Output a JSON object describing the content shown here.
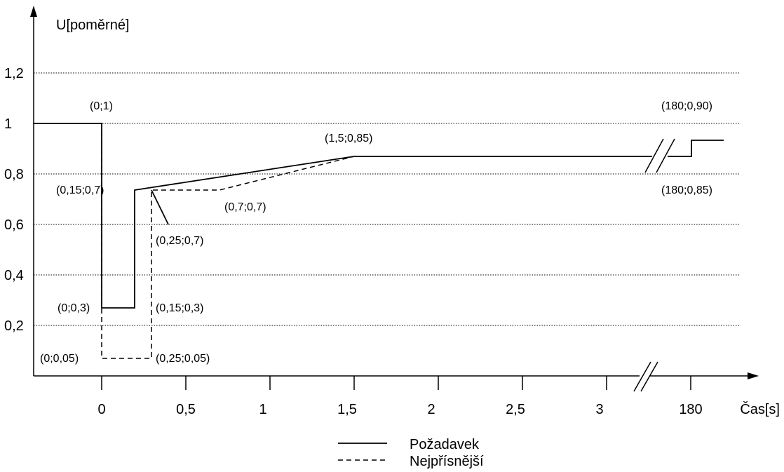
{
  "chart_data": {
    "type": "line",
    "ylabel": "U[poměrné]",
    "xlabel": "Čas[s]",
    "x_ticks": [
      "0",
      "0,5",
      "1",
      "1,5",
      "2",
      "2,5",
      "3",
      "180"
    ],
    "y_ticks": [
      "0,2",
      "0,4",
      "0,6",
      "0,8",
      "1",
      "1,2"
    ],
    "gridlines": "horizontal dotted",
    "x_axis_break": "between 3 and 180",
    "series": [
      {
        "name": "Požadavek",
        "style": "solid",
        "points": [
          [
            0,
            1
          ],
          [
            0,
            0.3
          ],
          [
            0.15,
            0.3
          ],
          [
            0.15,
            0.7
          ],
          [
            1.5,
            0.85
          ],
          [
            180,
            0.85
          ],
          [
            180,
            0.9
          ]
        ]
      },
      {
        "name": "Nejpřísnější",
        "style": "dashed",
        "points": [
          [
            0,
            1
          ],
          [
            0,
            0.05
          ],
          [
            0.25,
            0.05
          ],
          [
            0.25,
            0.7
          ],
          [
            0.7,
            0.7
          ],
          [
            1.5,
            0.85
          ]
        ]
      }
    ],
    "annotations": [
      "(0;1)",
      "(180;0,90)",
      "(1,5;0,85)",
      "(0,15;0,7)",
      "(180;0,85)",
      "(0,7;0,7)",
      "(0,25;0,7)",
      "(0;0,3)",
      "(0,15;0,3)",
      "(0;0,05)",
      "(0,25;0,05)"
    ]
  }
}
